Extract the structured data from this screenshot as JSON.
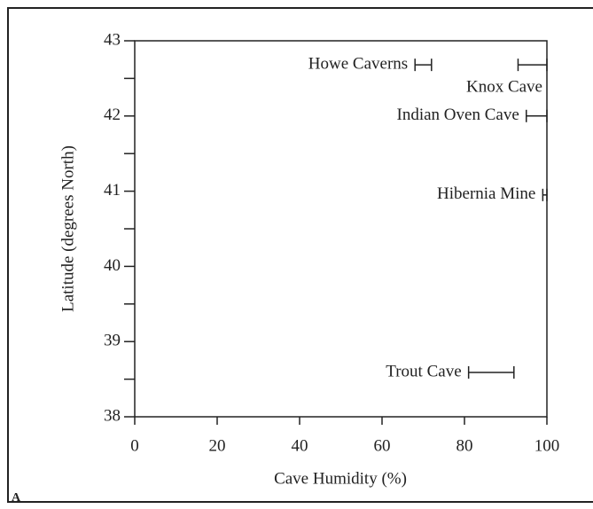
{
  "chart_data": {
    "type": "range",
    "xlabel": "Cave Humidity (%)",
    "ylabel": "Latitude (degrees North)",
    "panel_label": "A",
    "xlim": [
      0,
      100
    ],
    "xticks": [
      0,
      20,
      40,
      60,
      80,
      100
    ],
    "ylim": [
      38,
      43
    ],
    "yticks": [
      38,
      39,
      40,
      41,
      42,
      43
    ],
    "yminor_ticks": [
      38.5,
      39.5,
      40.5,
      41.5,
      42.5
    ],
    "color": "#222222",
    "series": [
      {
        "name": "Howe Caverns",
        "lat": 42.68,
        "min": 68,
        "max": 72
      },
      {
        "name": "Knox Cave",
        "lat": 42.68,
        "min": 93,
        "max": 100
      },
      {
        "name": "Indian Oven Cave",
        "lat": 42.0,
        "min": 95,
        "max": 100
      },
      {
        "name": "Hibernia Mine",
        "lat": 40.95,
        "min": 99,
        "max": 100
      },
      {
        "name": "Trout Cave",
        "lat": 38.59,
        "min": 81,
        "max": 92
      }
    ]
  }
}
